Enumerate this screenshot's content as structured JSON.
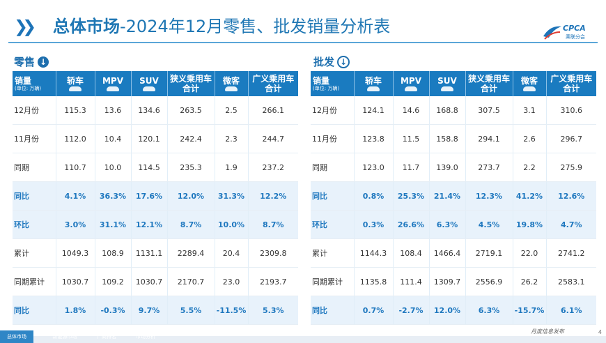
{
  "header": {
    "title_bold": "总体市场",
    "title_rest": "-2024年12月零售、批发销量分析表",
    "logo_text": "CPCA",
    "logo_sub": "乘联分会"
  },
  "retail": {
    "section_label": "零售",
    "arrow": "↓",
    "columns": [
      {
        "label": "销量",
        "unit": "(单位: 万辆)"
      },
      {
        "label": "轿车"
      },
      {
        "label": "MPV"
      },
      {
        "label": "SUV"
      },
      {
        "label": "狭义乘用车",
        "label2": "合计"
      },
      {
        "label": "微客"
      },
      {
        "label": "广义乘用车",
        "label2": "合计"
      }
    ],
    "rows": [
      {
        "label": "12月份",
        "cells": [
          "115.3",
          "13.6",
          "134.6",
          "263.5",
          "2.5",
          "266.1"
        ]
      },
      {
        "label": "11月份",
        "cells": [
          "112.0",
          "10.4",
          "120.1",
          "242.4",
          "2.3",
          "244.7"
        ]
      },
      {
        "label": "同期",
        "cells": [
          "110.7",
          "10.0",
          "114.5",
          "235.3",
          "1.9",
          "237.2"
        ]
      },
      {
        "label": "同比",
        "cells": [
          "4.1%",
          "36.3%",
          "17.6%",
          "12.0%",
          "31.3%",
          "12.2%"
        ]
      },
      {
        "label": "环比",
        "cells": [
          "3.0%",
          "31.1%",
          "12.1%",
          "8.7%",
          "10.0%",
          "8.7%"
        ]
      },
      {
        "label": "累计",
        "cells": [
          "1049.3",
          "108.9",
          "1131.1",
          "2289.4",
          "20.4",
          "2309.8"
        ]
      },
      {
        "label": "同期累计",
        "cells": [
          "1030.7",
          "109.2",
          "1030.7",
          "2170.7",
          "23.0",
          "2193.7"
        ]
      },
      {
        "label": "同比",
        "cells": [
          "1.8%",
          "-0.3%",
          "9.7%",
          "5.5%",
          "-11.5%",
          "5.3%"
        ]
      }
    ]
  },
  "wholesale": {
    "section_label": "批发",
    "arrow": "↓",
    "columns": [
      {
        "label": "销量",
        "unit": "(单位: 万辆)"
      },
      {
        "label": "轿车"
      },
      {
        "label": "MPV"
      },
      {
        "label": "SUV"
      },
      {
        "label": "狭义乘用车",
        "label2": "合计"
      },
      {
        "label": "微客"
      },
      {
        "label": "广义乘用车",
        "label2": "合计"
      }
    ],
    "rows": [
      {
        "label": "12月份",
        "cells": [
          "124.1",
          "14.6",
          "168.8",
          "307.5",
          "3.1",
          "310.6"
        ]
      },
      {
        "label": "11月份",
        "cells": [
          "123.8",
          "11.5",
          "158.8",
          "294.1",
          "2.6",
          "296.7"
        ]
      },
      {
        "label": "同期",
        "cells": [
          "123.0",
          "11.7",
          "139.0",
          "273.7",
          "2.2",
          "275.9"
        ]
      },
      {
        "label": "同比",
        "cells": [
          "0.8%",
          "25.3%",
          "21.4%",
          "12.3%",
          "41.2%",
          "12.6%"
        ]
      },
      {
        "label": "环比",
        "cells": [
          "0.3%",
          "26.6%",
          "6.3%",
          "4.5%",
          "19.8%",
          "4.7%"
        ]
      },
      {
        "label": "累计",
        "cells": [
          "1144.3",
          "108.4",
          "1466.4",
          "2719.1",
          "22.0",
          "2741.2"
        ]
      },
      {
        "label": "同期累计",
        "cells": [
          "1135.8",
          "111.4",
          "1309.7",
          "2556.9",
          "26.2",
          "2583.1"
        ]
      },
      {
        "label": "同比",
        "cells": [
          "0.7%",
          "-2.7%",
          "12.0%",
          "6.3%",
          "-15.7%",
          "6.1%"
        ]
      }
    ]
  },
  "footer": {
    "tabs": [
      "总体市场",
      "新能源市场",
      "厂商排名",
      "市场分析"
    ],
    "slogan": "月度信息发布",
    "page": "4"
  },
  "colors": {
    "accent": "#1a7bc0",
    "highlight_row": "#e8f2fb",
    "highlight_text": "#1f78bf"
  }
}
